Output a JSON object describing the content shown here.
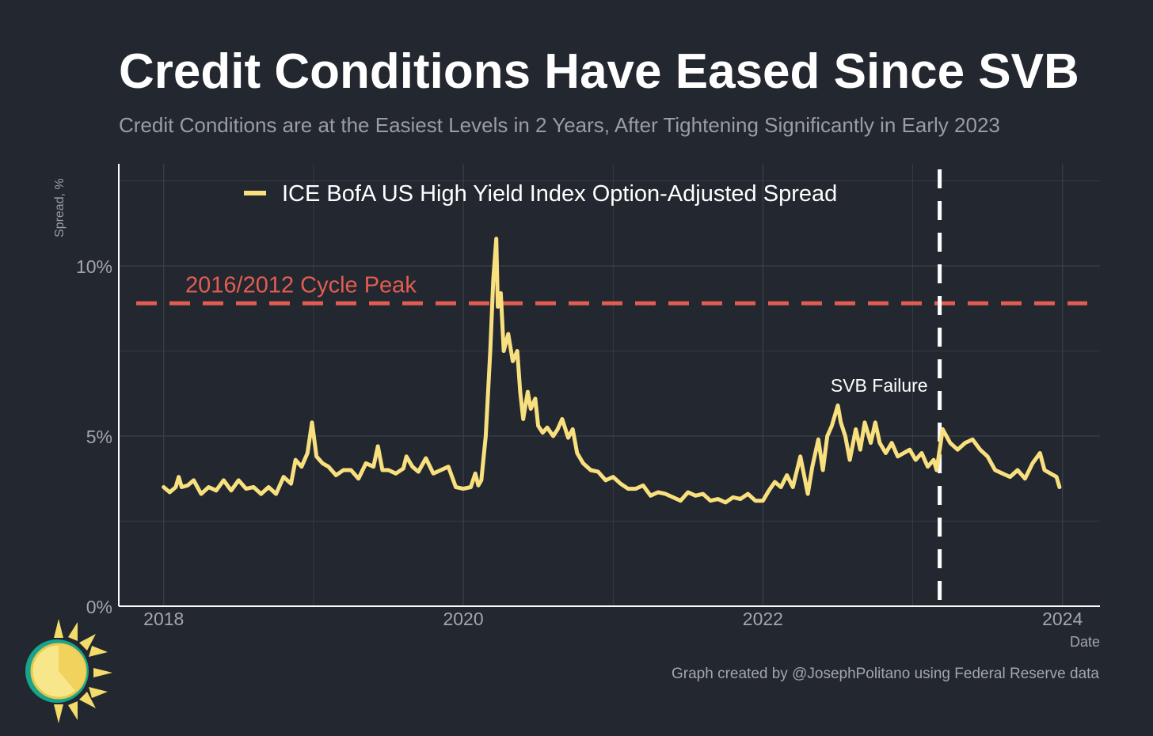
{
  "header": {
    "title": "Credit Conditions Have Eased Since SVB",
    "subtitle": "Credit Conditions are at the Easiest Levels in 2 Years, After Tightening Significantly in Early 2023"
  },
  "footer": {
    "caption": "Graph created by @JosephPolitano using Federal Reserve data"
  },
  "logo_icon": "sun-logo-icon",
  "colors": {
    "background": "#23272f",
    "series": "#f9e07f",
    "reference_line": "#e35d52",
    "event_line": "#ffffff",
    "grid": "#3c4048"
  },
  "chart_data": {
    "type": "line",
    "xlabel": "Date",
    "ylabel": "Spread, %",
    "xlim": [
      2017.7,
      2024.25
    ],
    "ylim": [
      0,
      13
    ],
    "x_ticks": [
      2018,
      2020,
      2022,
      2024
    ],
    "x_tick_labels": [
      "2018",
      "2020",
      "2022",
      "2024"
    ],
    "y_ticks": [
      0,
      5,
      10
    ],
    "y_tick_labels": [
      "0%",
      "5%",
      "10%"
    ],
    "grid": true,
    "legend": {
      "position": "top-left",
      "entries": [
        "ICE BofA US High Yield Index Option-Adjusted Spread"
      ]
    },
    "reference_lines": [
      {
        "orientation": "horizontal",
        "value": 8.9,
        "label": "2016/2012 Cycle Peak",
        "style": "dashed"
      },
      {
        "orientation": "vertical",
        "value": 2023.18,
        "label": "SVB Failure",
        "style": "dashed"
      }
    ],
    "series": [
      {
        "name": "ICE BofA US High Yield Index Option-Adjusted Spread",
        "x": [
          2018.0,
          2018.04,
          2018.08,
          2018.1,
          2018.12,
          2018.16,
          2018.2,
          2018.25,
          2018.3,
          2018.35,
          2018.4,
          2018.45,
          2018.5,
          2018.55,
          2018.6,
          2018.65,
          2018.7,
          2018.75,
          2018.8,
          2018.85,
          2018.88,
          2018.92,
          2018.96,
          2018.99,
          2019.02,
          2019.06,
          2019.1,
          2019.15,
          2019.2,
          2019.25,
          2019.3,
          2019.35,
          2019.4,
          2019.43,
          2019.46,
          2019.5,
          2019.55,
          2019.6,
          2019.62,
          2019.66,
          2019.7,
          2019.75,
          2019.8,
          2019.85,
          2019.9,
          2019.95,
          2020.0,
          2020.05,
          2020.08,
          2020.1,
          2020.12,
          2020.15,
          2020.18,
          2020.2,
          2020.22,
          2020.23,
          2020.25,
          2020.27,
          2020.3,
          2020.33,
          2020.36,
          2020.38,
          2020.4,
          2020.43,
          2020.45,
          2020.48,
          2020.5,
          2020.53,
          2020.56,
          2020.6,
          2020.63,
          2020.66,
          2020.7,
          2020.73,
          2020.76,
          2020.8,
          2020.85,
          2020.9,
          2020.95,
          2021.0,
          2021.05,
          2021.1,
          2021.15,
          2021.2,
          2021.25,
          2021.3,
          2021.35,
          2021.4,
          2021.45,
          2021.5,
          2021.55,
          2021.6,
          2021.65,
          2021.7,
          2021.75,
          2021.8,
          2021.85,
          2021.9,
          2021.95,
          2022.0,
          2022.04,
          2022.08,
          2022.12,
          2022.16,
          2022.2,
          2022.25,
          2022.3,
          2022.33,
          2022.37,
          2022.4,
          2022.43,
          2022.46,
          2022.5,
          2022.52,
          2022.55,
          2022.58,
          2022.62,
          2022.65,
          2022.68,
          2022.72,
          2022.75,
          2022.78,
          2022.82,
          2022.86,
          2022.9,
          2022.94,
          2022.98,
          2023.02,
          2023.06,
          2023.1,
          2023.14,
          2023.16,
          2023.2,
          2023.25,
          2023.3,
          2023.35,
          2023.4,
          2023.45,
          2023.5,
          2023.55,
          2023.6,
          2023.65,
          2023.7,
          2023.75,
          2023.8,
          2023.85,
          2023.88,
          2023.92,
          2023.96,
          2023.98
        ],
        "values": [
          3.5,
          3.35,
          3.5,
          3.8,
          3.5,
          3.55,
          3.7,
          3.3,
          3.5,
          3.4,
          3.7,
          3.4,
          3.7,
          3.45,
          3.5,
          3.3,
          3.5,
          3.3,
          3.8,
          3.6,
          4.3,
          4.1,
          4.5,
          5.4,
          4.4,
          4.2,
          4.1,
          3.85,
          4.0,
          4.0,
          3.75,
          4.2,
          4.1,
          4.7,
          4.0,
          4.0,
          3.9,
          4.05,
          4.4,
          4.1,
          3.95,
          4.35,
          3.9,
          4.0,
          4.1,
          3.5,
          3.45,
          3.5,
          3.9,
          3.55,
          3.7,
          5.0,
          7.5,
          9.6,
          10.8,
          8.8,
          9.2,
          7.5,
          8.0,
          7.2,
          7.5,
          6.3,
          5.5,
          6.3,
          5.8,
          6.1,
          5.3,
          5.1,
          5.25,
          5.0,
          5.2,
          5.5,
          4.95,
          5.2,
          4.5,
          4.2,
          4.0,
          3.95,
          3.7,
          3.8,
          3.6,
          3.45,
          3.45,
          3.55,
          3.25,
          3.35,
          3.3,
          3.2,
          3.1,
          3.35,
          3.25,
          3.3,
          3.1,
          3.15,
          3.05,
          3.2,
          3.15,
          3.3,
          3.1,
          3.1,
          3.4,
          3.65,
          3.5,
          3.85,
          3.5,
          4.4,
          3.3,
          4.1,
          4.9,
          4.0,
          5.0,
          5.3,
          5.9,
          5.4,
          5.0,
          4.3,
          5.2,
          4.6,
          5.4,
          4.8,
          5.4,
          4.8,
          4.5,
          4.8,
          4.4,
          4.5,
          4.6,
          4.3,
          4.5,
          4.1,
          4.3,
          4.0,
          5.2,
          4.8,
          4.6,
          4.8,
          4.9,
          4.6,
          4.4,
          4.0,
          3.9,
          3.8,
          4.0,
          3.75,
          4.2,
          4.5,
          4.0,
          3.9,
          3.8,
          3.5
        ]
      }
    ]
  }
}
